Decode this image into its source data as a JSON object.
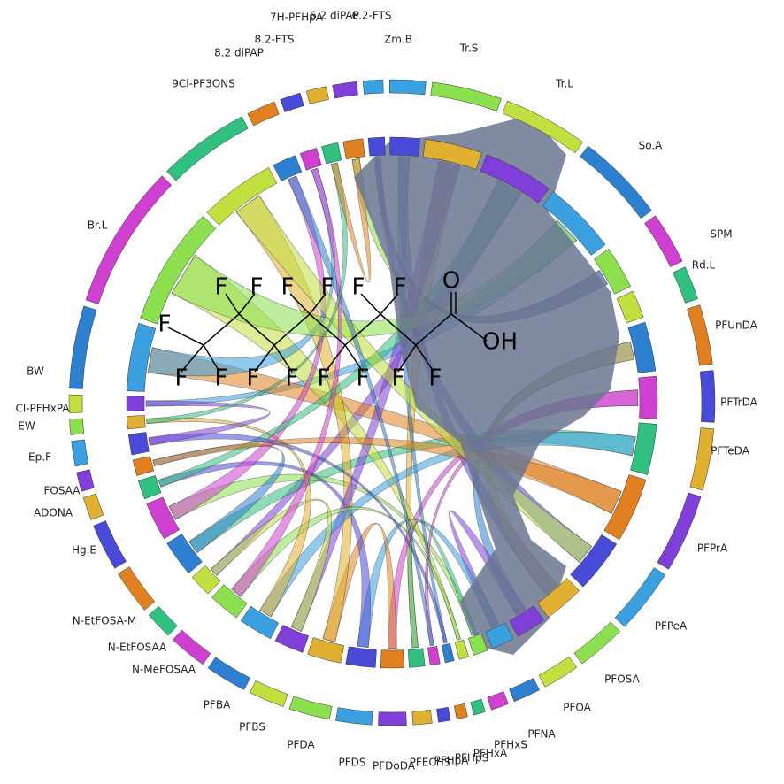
{
  "nodes": [
    {
      "label": "Zm.B"
    },
    {
      "label": "Tr.S"
    },
    {
      "label": "Tr.L"
    },
    {
      "label": "So.A"
    },
    {
      "label": "SPM"
    },
    {
      "label": "Rd.L"
    },
    {
      "label": "PFUnDA"
    },
    {
      "label": "PFTrDA"
    },
    {
      "label": "PFTeDA"
    },
    {
      "label": "PFPrA"
    },
    {
      "label": "PFPeA"
    },
    {
      "label": "PFOSA"
    },
    {
      "label": "PFOA"
    },
    {
      "label": "PFNA"
    },
    {
      "label": "PFHxS"
    },
    {
      "label": "PFHxA"
    },
    {
      "label": "PFHpS"
    },
    {
      "label": "PFHpA"
    },
    {
      "label": "PFECHS"
    },
    {
      "label": "PFDoDA"
    },
    {
      "label": "PFDS"
    },
    {
      "label": "PFDA"
    },
    {
      "label": "PFBS"
    },
    {
      "label": "PFBA"
    },
    {
      "label": "N-MeFOSAA"
    },
    {
      "label": "N-EtFOSAA"
    },
    {
      "label": "N-EtFOSA-M"
    },
    {
      "label": "Hg.E"
    },
    {
      "label": "ADONA"
    },
    {
      "label": "FOSAA"
    },
    {
      "label": "Ep.F"
    },
    {
      "label": "EW"
    },
    {
      "label": "Cl-PFHxPA"
    },
    {
      "label": "BW"
    },
    {
      "label": "Br.L"
    },
    {
      "label": "9Cl-PF3ONS"
    },
    {
      "label": "8.2 diPAP"
    },
    {
      "label": "8.2-FTS"
    },
    {
      "label": "7H-PFHpA"
    },
    {
      "label": "6.2 diPAP"
    },
    {
      "label": "6.2-FTS"
    }
  ],
  "molecule": {
    "atoms": [
      "F",
      "F",
      "F",
      "F",
      "F",
      "F",
      "F",
      "F",
      "F",
      "F",
      "F",
      "F",
      "F",
      "F",
      "F",
      "O",
      "OH"
    ]
  }
}
